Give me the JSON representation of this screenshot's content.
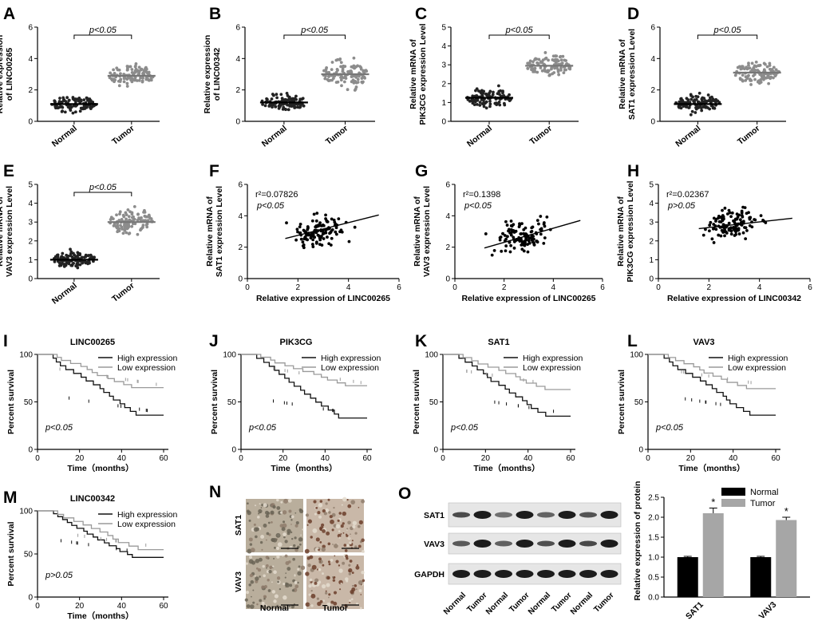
{
  "figure": {
    "label_prefix": "Relative expression",
    "time_label": "Time（months）",
    "percent_survival": "Percent survival"
  },
  "chart_data": [
    {
      "id": "A",
      "panel_label": "A",
      "type": "scatter",
      "ylabel_lines": [
        "Relative expression",
        "of LINC00265"
      ],
      "ylim": [
        0,
        6
      ],
      "yticks": [
        0,
        2,
        4,
        6
      ],
      "categories": [
        "Normal",
        "Tumor"
      ],
      "groups": [
        {
          "name": "Normal",
          "mean": 1.1,
          "spread": 0.42,
          "min": 0.4,
          "max": 2.7,
          "n": 110,
          "color": "#222222"
        },
        {
          "name": "Tumor",
          "mean": 2.9,
          "spread": 0.6,
          "min": 1.6,
          "max": 5.1,
          "n": 110,
          "color": "#8c8c8c"
        }
      ],
      "annotation": "p<0.05"
    },
    {
      "id": "B",
      "panel_label": "B",
      "type": "scatter",
      "ylabel_lines": [
        "Relative expression",
        "of LINC00342"
      ],
      "ylim": [
        0,
        6
      ],
      "yticks": [
        0,
        2,
        4,
        6
      ],
      "categories": [
        "Normal",
        "Tumor"
      ],
      "groups": [
        {
          "name": "Normal",
          "mean": 1.2,
          "spread": 0.45,
          "min": 0.3,
          "max": 2.7,
          "n": 110,
          "color": "#222222"
        },
        {
          "name": "Tumor",
          "mean": 3.0,
          "spread": 0.75,
          "min": 1.3,
          "max": 5.3,
          "n": 110,
          "color": "#8c8c8c"
        }
      ],
      "annotation": "p<0.05"
    },
    {
      "id": "C",
      "panel_label": "C",
      "type": "scatter",
      "ylabel_lines": [
        "Relative mRNA of",
        "PIK3CG expression Level"
      ],
      "ylim": [
        0,
        5
      ],
      "yticks": [
        0,
        1,
        2,
        3,
        4,
        5
      ],
      "categories": [
        "Normal",
        "Tumor"
      ],
      "groups": [
        {
          "name": "Normal",
          "mean": 1.25,
          "spread": 0.45,
          "min": 0.4,
          "max": 2.7,
          "n": 110,
          "color": "#222222"
        },
        {
          "name": "Tumor",
          "mean": 2.95,
          "spread": 0.5,
          "min": 1.6,
          "max": 4.3,
          "n": 110,
          "color": "#8c8c8c"
        }
      ],
      "annotation": "p<0.05"
    },
    {
      "id": "D",
      "panel_label": "D",
      "type": "scatter",
      "ylabel_lines": [
        "Relative mRNA of",
        "SAT1 expression Level"
      ],
      "ylim": [
        0,
        6
      ],
      "yticks": [
        0,
        2,
        4,
        6
      ],
      "categories": [
        "Normal",
        "Tumor"
      ],
      "groups": [
        {
          "name": "Normal",
          "mean": 1.1,
          "spread": 0.45,
          "min": 0.2,
          "max": 2.8,
          "n": 110,
          "color": "#222222"
        },
        {
          "name": "Tumor",
          "mean": 3.1,
          "spread": 0.6,
          "min": 1.8,
          "max": 5.0,
          "n": 110,
          "color": "#8c8c8c"
        }
      ],
      "annotation": "p<0.05"
    },
    {
      "id": "E",
      "panel_label": "E",
      "type": "scatter",
      "ylabel_lines": [
        "Relative mRNA of",
        "VAV3 expression Level"
      ],
      "ylim": [
        0,
        5
      ],
      "yticks": [
        0,
        1,
        2,
        3,
        4,
        5
      ],
      "categories": [
        "Normal",
        "Tumor"
      ],
      "groups": [
        {
          "name": "Normal",
          "mean": 1.0,
          "spread": 0.35,
          "min": 0.2,
          "max": 2.3,
          "n": 110,
          "color": "#222222"
        },
        {
          "name": "Tumor",
          "mean": 3.0,
          "spread": 0.55,
          "min": 1.6,
          "max": 4.6,
          "n": 110,
          "color": "#8c8c8c"
        }
      ],
      "annotation": "p<0.05"
    },
    {
      "id": "F",
      "panel_label": "F",
      "type": "scatter-regression",
      "ylabel_lines": [
        "Relative mRNA of",
        "SAT1 expression Level"
      ],
      "xlabel": "Relative expression of LINC00265",
      "xlim": [
        0,
        6
      ],
      "xticks": [
        0,
        2,
        4,
        6
      ],
      "ylim": [
        0,
        6
      ],
      "yticks": [
        0,
        2,
        4,
        6
      ],
      "cloud": {
        "xmin": 1.5,
        "xmax": 5.2,
        "ymin": 1.4,
        "ymax": 5.0,
        "xc": 2.9,
        "yc": 3.1,
        "n": 120
      },
      "fit": {
        "x0": 1.5,
        "y0": 2.55,
        "x1": 5.2,
        "y1": 4.05
      },
      "annotation": [
        "r²=0.07826",
        "p<0.05"
      ]
    },
    {
      "id": "G",
      "panel_label": "G",
      "type": "scatter-regression",
      "ylabel_lines": [
        "Relative mRNA of",
        "VAV3 expression Level"
      ],
      "xlabel": "Relative expression of LINC00265",
      "xlim": [
        0,
        6
      ],
      "xticks": [
        0,
        2,
        4,
        6
      ],
      "ylim": [
        0,
        6
      ],
      "yticks": [
        0,
        2,
        4,
        6
      ],
      "cloud": {
        "xmin": 1.2,
        "xmax": 5.1,
        "ymin": 1.1,
        "ymax": 4.8,
        "xc": 2.8,
        "yc": 2.8,
        "n": 120
      },
      "fit": {
        "x0": 1.2,
        "y0": 1.95,
        "x1": 5.1,
        "y1": 3.7
      },
      "annotation": [
        "r²=0.1398",
        "p<0.05"
      ]
    },
    {
      "id": "H",
      "panel_label": "H",
      "type": "scatter-regression",
      "ylabel_lines": [
        "Relative mRNA of",
        "PIK3CG expression Level"
      ],
      "xlabel": "Relative expression of LINC00342",
      "xlim": [
        0,
        6
      ],
      "xticks": [
        0,
        2,
        4,
        6
      ],
      "ylim": [
        0,
        5
      ],
      "yticks": [
        0,
        1,
        2,
        3,
        4,
        5
      ],
      "cloud": {
        "xmin": 1.6,
        "xmax": 5.3,
        "ymin": 1.4,
        "ymax": 4.2,
        "xc": 3.0,
        "yc": 2.85,
        "n": 120
      },
      "fit": {
        "x0": 1.6,
        "y0": 2.65,
        "x1": 5.3,
        "y1": 3.2
      },
      "annotation": [
        "r²=0.02367",
        "p>0.05"
      ]
    },
    {
      "id": "I",
      "panel_label": "I",
      "type": "survival",
      "title": "LINC00265",
      "ylabel": "Percent survival",
      "xlabel": "Time（months）",
      "xlim": [
        0,
        60
      ],
      "xticks": [
        0,
        20,
        40,
        60
      ],
      "ylim": [
        0,
        100
      ],
      "yticks": [
        0,
        50,
        100
      ],
      "series": [
        {
          "name": "High expression",
          "color": "#111111",
          "end": 36
        },
        {
          "name": "Low expression",
          "color": "#9a9a9a",
          "end": 65
        }
      ],
      "annotation": "p<0.05"
    },
    {
      "id": "J",
      "panel_label": "J",
      "type": "survival",
      "title": "PIK3CG",
      "ylabel": "Percent survival",
      "xlabel": "Time（months）",
      "xlim": [
        0,
        60
      ],
      "xticks": [
        0,
        20,
        40,
        60
      ],
      "ylim": [
        0,
        100
      ],
      "yticks": [
        0,
        50,
        100
      ],
      "series": [
        {
          "name": "High expression",
          "color": "#111111",
          "end": 33
        },
        {
          "name": "Low expression",
          "color": "#9a9a9a",
          "end": 67
        }
      ],
      "annotation": "p<0.05"
    },
    {
      "id": "K",
      "panel_label": "K",
      "type": "survival",
      "title": "SAT1",
      "ylabel": "Percent survival",
      "xlabel": "Time（months）",
      "xlim": [
        0,
        60
      ],
      "xticks": [
        0,
        20,
        40,
        60
      ],
      "ylim": [
        0,
        100
      ],
      "yticks": [
        0,
        50,
        100
      ],
      "series": [
        {
          "name": "High expression",
          "color": "#111111",
          "end": 35
        },
        {
          "name": "Low expression",
          "color": "#9a9a9a",
          "end": 63
        }
      ],
      "annotation": "p<0.05"
    },
    {
      "id": "L",
      "panel_label": "L",
      "type": "survival",
      "title": "VAV3",
      "ylabel": "Percent survival",
      "xlabel": "Time（months）",
      "xlim": [
        0,
        60
      ],
      "xticks": [
        0,
        20,
        40,
        60
      ],
      "ylim": [
        0,
        100
      ],
      "yticks": [
        0,
        50,
        100
      ],
      "series": [
        {
          "name": "High expression",
          "color": "#111111",
          "end": 36
        },
        {
          "name": "Low expression",
          "color": "#9a9a9a",
          "end": 64
        }
      ],
      "annotation": "p<0.05"
    },
    {
      "id": "M",
      "panel_label": "M",
      "type": "survival",
      "title": "LINC00342",
      "ylabel": "Percent survival",
      "xlabel": "Time（months）",
      "xlim": [
        0,
        60
      ],
      "xticks": [
        0,
        20,
        40,
        60
      ],
      "ylim": [
        0,
        100
      ],
      "yticks": [
        0,
        50,
        100
      ],
      "series": [
        {
          "name": "High expression",
          "color": "#111111",
          "end": 46
        },
        {
          "name": "Low expression",
          "color": "#9a9a9a",
          "end": 55
        }
      ],
      "annotation": "p>0.05"
    },
    {
      "id": "O2",
      "panel_label": "",
      "type": "bar",
      "ylabel": "Relative expression of protein",
      "categories": [
        "SAT1",
        "VAV3"
      ],
      "ylim": [
        0,
        2.5
      ],
      "yticks": [
        0.0,
        0.5,
        1.0,
        1.5,
        2.0,
        2.5
      ],
      "series": [
        {
          "name": "Normal",
          "values": [
            1.0,
            1.0
          ],
          "errors": [
            0.02,
            0.02
          ],
          "color": "#000000"
        },
        {
          "name": "Tumor",
          "values": [
            2.1,
            1.93
          ],
          "errors": [
            0.13,
            0.07
          ],
          "color": "#a6a6a6"
        }
      ],
      "significance": [
        "*",
        "*"
      ]
    }
  ],
  "ihc": {
    "panel_label": "N",
    "rows": [
      "SAT1",
      "VAV3"
    ],
    "cols": [
      "Normal",
      "Tumor"
    ]
  },
  "western": {
    "panel_label": "O",
    "bands": [
      "SAT1",
      "VAV3",
      "GAPDH"
    ],
    "lanes": [
      "Normal",
      "Tumor",
      "Normal",
      "Tumor",
      "Normal",
      "Tumor",
      "Normal",
      "Tumor"
    ]
  }
}
